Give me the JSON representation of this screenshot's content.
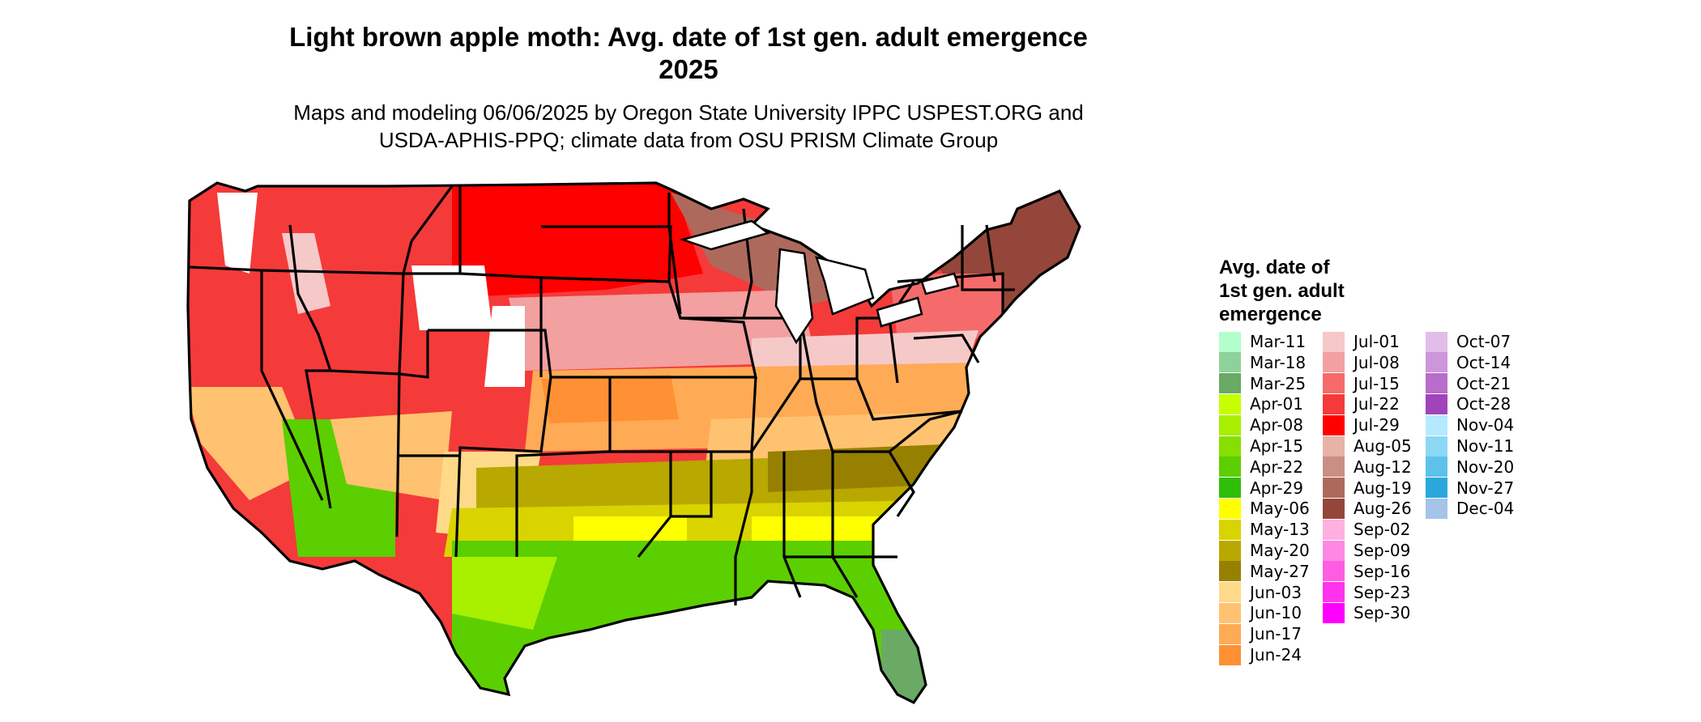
{
  "title": {
    "line1": "Light brown apple moth: Avg. date of 1st gen. adult emergence",
    "line2": "2025"
  },
  "subtitle": {
    "line1": "Maps and modeling 06/06/2025 by Oregon State University IPPC USPEST.ORG and",
    "line2": "USDA-APHIS-PPQ; climate data from OSU PRISM Climate Group"
  },
  "legend": {
    "title_lines": [
      "Avg. date of",
      "1st gen. adult",
      "emergence"
    ],
    "items": [
      {
        "label": "Mar-11",
        "color": "#b3ffcc"
      },
      {
        "label": "Mar-18",
        "color": "#8fd19a"
      },
      {
        "label": "Mar-25",
        "color": "#6aaa64"
      },
      {
        "label": "Apr-01",
        "color": "#c8ff00"
      },
      {
        "label": "Apr-08",
        "color": "#a8ef00"
      },
      {
        "label": "Apr-15",
        "color": "#86df00"
      },
      {
        "label": "Apr-22",
        "color": "#5ccf00"
      },
      {
        "label": "Apr-29",
        "color": "#2fbf0a"
      },
      {
        "label": "May-06",
        "color": "#ffff00"
      },
      {
        "label": "May-13",
        "color": "#d9d400"
      },
      {
        "label": "May-20",
        "color": "#b8a800"
      },
      {
        "label": "May-27",
        "color": "#978000"
      },
      {
        "label": "Jun-03",
        "color": "#ffd98a"
      },
      {
        "label": "Jun-10",
        "color": "#ffc270"
      },
      {
        "label": "Jun-17",
        "color": "#ffaa55"
      },
      {
        "label": "Jun-24",
        "color": "#ff9033"
      },
      {
        "label": "Jul-01",
        "color": "#f6c9c9"
      },
      {
        "label": "Jul-08",
        "color": "#f2a0a0"
      },
      {
        "label": "Jul-15",
        "color": "#f56b6b"
      },
      {
        "label": "Jul-22",
        "color": "#f53a3a"
      },
      {
        "label": "Jul-29",
        "color": "#ff0000"
      },
      {
        "label": "Aug-05",
        "color": "#e8b2a8"
      },
      {
        "label": "Aug-12",
        "color": "#c98f84"
      },
      {
        "label": "Aug-19",
        "color": "#ad6a5c"
      },
      {
        "label": "Aug-26",
        "color": "#94463a"
      },
      {
        "label": "Sep-02",
        "color": "#ffb0e0"
      },
      {
        "label": "Sep-09",
        "color": "#ff88e2"
      },
      {
        "label": "Sep-16",
        "color": "#ff5ce4"
      },
      {
        "label": "Sep-23",
        "color": "#ff33ec"
      },
      {
        "label": "Sep-30",
        "color": "#ff00ff"
      },
      {
        "label": "Oct-07",
        "color": "#e2bde9"
      },
      {
        "label": "Oct-14",
        "color": "#cd95da"
      },
      {
        "label": "Oct-21",
        "color": "#b86ccb"
      },
      {
        "label": "Oct-28",
        "color": "#a044bb"
      },
      {
        "label": "Nov-04",
        "color": "#b4eaff"
      },
      {
        "label": "Nov-11",
        "color": "#8dd8f5"
      },
      {
        "label": "Nov-20",
        "color": "#5ec1ea"
      },
      {
        "label": "Nov-27",
        "color": "#2aa8dc"
      },
      {
        "label": "Dec-04",
        "color": "#a4c4e8"
      }
    ]
  }
}
